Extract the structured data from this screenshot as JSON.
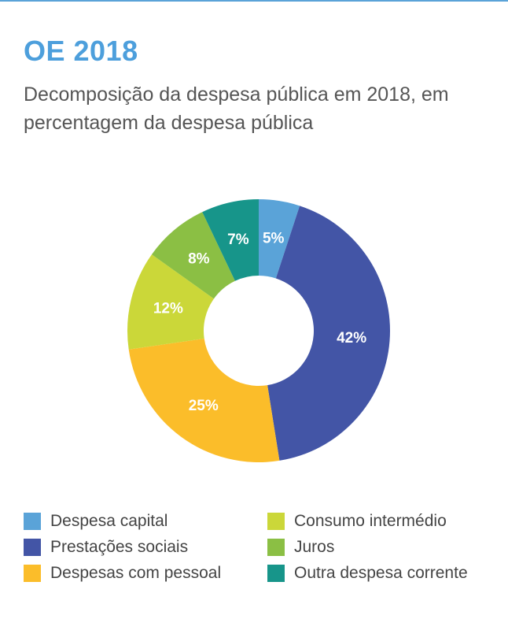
{
  "header": {
    "title": "OE 2018",
    "subtitle": "Decomposição da despesa pública em 2018, em percentagem da despesa pública"
  },
  "chart_data": {
    "type": "pie",
    "donut": true,
    "start_angle_deg": 0,
    "direction": "clockwise",
    "slices": [
      {
        "name": "Despesa capital",
        "value": 5,
        "label": "5%",
        "color": "#5aa3d8"
      },
      {
        "name": "Prestações sociais",
        "value": 42,
        "label": "42%",
        "color": "#4355a6"
      },
      {
        "name": "Despesas com pessoal",
        "value": 25,
        "label": "25%",
        "color": "#fbbd2a"
      },
      {
        "name": "Consumo intermédio",
        "value": 12,
        "label": "12%",
        "color": "#cbd739"
      },
      {
        "name": "Juros",
        "value": 8,
        "label": "8%",
        "color": "#8bbf44"
      },
      {
        "name": "Outra despesa corrente",
        "value": 7,
        "label": "7%",
        "color": "#17958a"
      }
    ],
    "legend": {
      "placement": "bottom",
      "columns": 2,
      "order": [
        "Despesa capital",
        "Consumo intermédio",
        "Prestações sociais",
        "Juros",
        "Despesas com pessoal",
        "Outra despesa corrente"
      ]
    }
  }
}
